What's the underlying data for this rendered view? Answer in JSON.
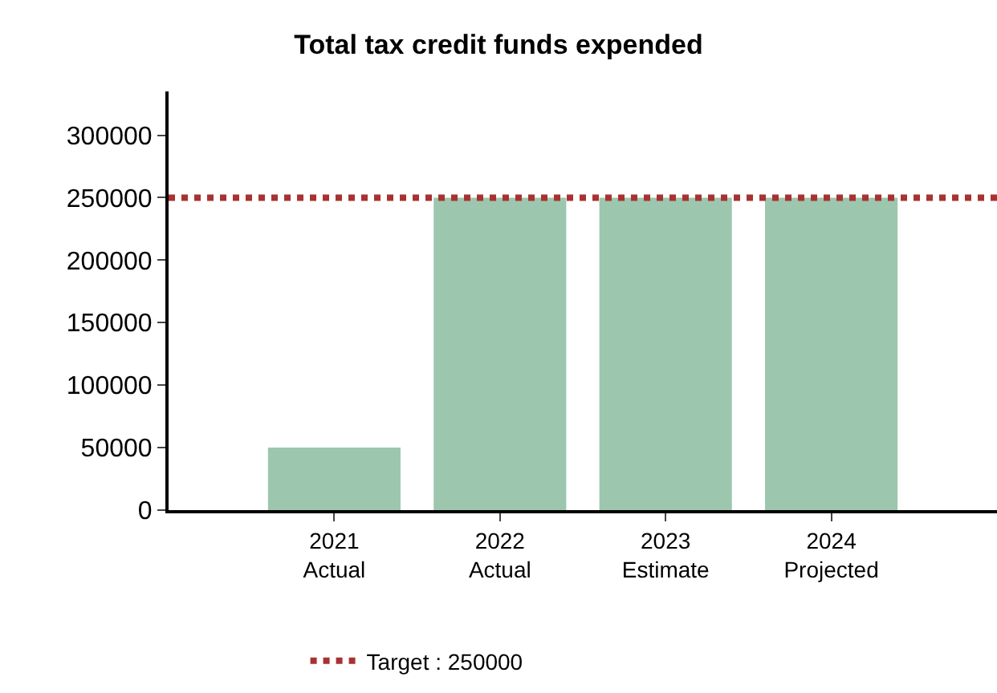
{
  "chart_data": {
    "type": "bar",
    "title": "Total tax credit funds expended",
    "categories": [
      "2021\nActual",
      "2022\nActual",
      "2023\nEstimate",
      "2024\nProjected"
    ],
    "values": [
      50000,
      250000,
      250000,
      250000
    ],
    "color": "#9cc6ae",
    "ylim": [
      0,
      335000
    ],
    "yticks": [
      0,
      50000,
      100000,
      150000,
      200000,
      250000,
      300000
    ],
    "legend": "bottom",
    "ref_lines": [
      {
        "axis": "y",
        "value": 250000,
        "label": "Target : 250000",
        "color": "#a83232",
        "line_style": "dotted"
      }
    ]
  }
}
